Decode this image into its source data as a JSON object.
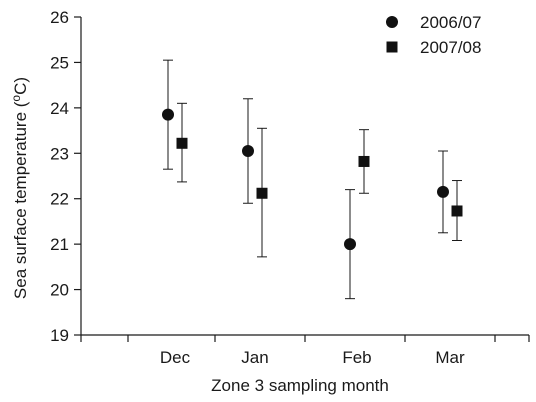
{
  "chart_data": {
    "type": "scatter",
    "title": "",
    "xlabel": "Zone 3 sampling month",
    "ylabel": "Sea surface temperature (°C)",
    "categories": [
      "Dec",
      "Jan",
      "Feb",
      "Mar"
    ],
    "ylim": [
      19,
      26
    ],
    "yticks": [
      19,
      20,
      21,
      22,
      23,
      24,
      25,
      26
    ],
    "grid": false,
    "legend_position": "top-right",
    "series": [
      {
        "name": "2006/07",
        "marker": "circle",
        "values": [
          23.85,
          23.05,
          21.0,
          22.15
        ],
        "err_low": [
          22.65,
          21.9,
          19.8,
          21.25
        ],
        "err_high": [
          25.05,
          24.2,
          22.2,
          23.05
        ]
      },
      {
        "name": "2007/08",
        "marker": "square",
        "values": [
          23.22,
          22.12,
          22.82,
          21.73
        ],
        "err_low": [
          22.37,
          20.72,
          22.12,
          21.08
        ],
        "err_high": [
          24.1,
          23.55,
          23.52,
          22.4
        ]
      }
    ]
  }
}
